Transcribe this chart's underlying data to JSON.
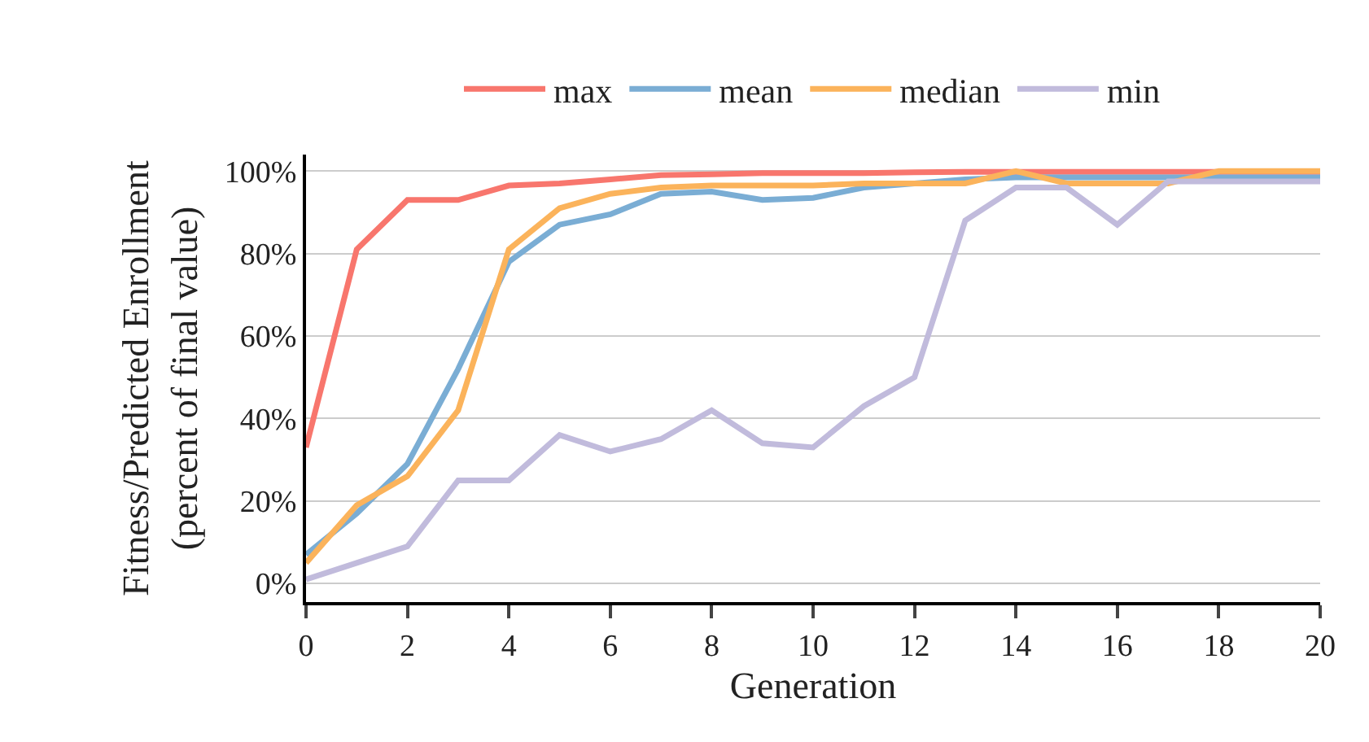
{
  "chart_data": {
    "type": "line",
    "xlabel": "Generation",
    "ylabel": "Fitness/Predicted Enrollment\n(percent of final value)",
    "x": [
      0,
      1,
      2,
      3,
      4,
      5,
      6,
      7,
      8,
      9,
      10,
      11,
      12,
      13,
      14,
      15,
      16,
      17,
      18,
      19,
      20
    ],
    "xlim": [
      0,
      20
    ],
    "xticks": [
      0,
      2,
      4,
      6,
      8,
      10,
      12,
      14,
      16,
      18,
      20
    ],
    "ylim": [
      -4.5,
      104
    ],
    "yticks": [
      {
        "value": 0,
        "label": "0%"
      },
      {
        "value": 20,
        "label": "20%"
      },
      {
        "value": 40,
        "label": "40%"
      },
      {
        "value": 60,
        "label": "60%"
      },
      {
        "value": 80,
        "label": "80%"
      },
      {
        "value": 100,
        "label": "100%"
      }
    ],
    "grid": "y",
    "legend": "top",
    "marker": "none",
    "line_style": "solid",
    "series": [
      {
        "name": "max",
        "color": "#f8766d",
        "values": [
          33,
          81,
          93,
          93,
          96.5,
          97,
          98,
          99,
          99.2,
          99.5,
          99.5,
          99.5,
          99.7,
          99.8,
          99.8,
          99.8,
          99.8,
          99.8,
          99.8,
          99.8,
          99.8
        ]
      },
      {
        "name": "mean",
        "color": "#7aadd4",
        "values": [
          7,
          17,
          29,
          52,
          78,
          87,
          89.5,
          94.5,
          95,
          93,
          93.5,
          96,
          97,
          98,
          98.5,
          98.5,
          98.5,
          98.5,
          98.5,
          98.5,
          98.5
        ]
      },
      {
        "name": "median",
        "color": "#fbb35b",
        "values": [
          5,
          19,
          26,
          42,
          81,
          91,
          94.5,
          96,
          96.5,
          96.5,
          96.5,
          97,
          97,
          97,
          100,
          97,
          97,
          97,
          100,
          100,
          100
        ]
      },
      {
        "name": "min",
        "color": "#c1bbdc",
        "values": [
          1,
          5,
          9,
          25,
          25,
          36,
          32,
          35,
          42,
          34,
          33,
          43,
          50,
          88,
          96,
          96,
          87,
          97.5,
          97.5,
          97.5,
          97.5
        ]
      }
    ]
  }
}
